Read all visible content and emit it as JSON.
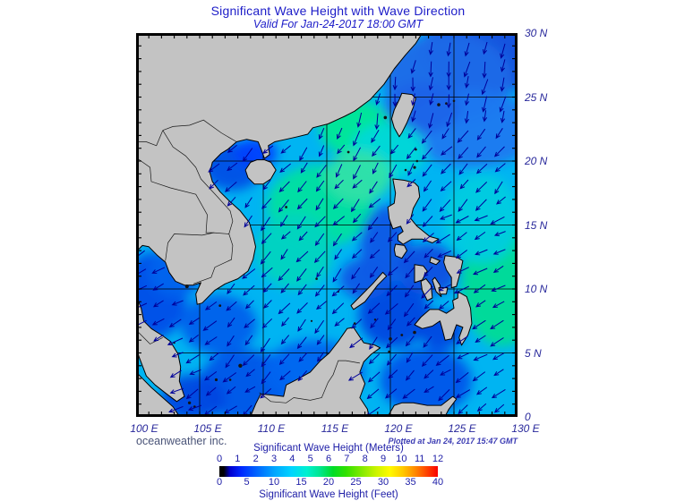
{
  "header": {
    "title": "Significant Wave Height with Wave Direction",
    "subtitle": "Valid For Jan-24-2017 18:00 GMT"
  },
  "map": {
    "lon_labels": [
      "100 E",
      "105 E",
      "110 E",
      "115 E",
      "120 E",
      "125 E",
      "130 E"
    ],
    "lat_labels": [
      "30 N",
      "25 N",
      "20 N",
      "15 N",
      "10 N",
      "5 N",
      "0"
    ],
    "lon_range": [
      100,
      130
    ],
    "lat_range": [
      0,
      30
    ],
    "grid_interval_deg": 5,
    "tick_interval_deg": 1,
    "land_color": "#c3c3c3",
    "coast_color": "#000000",
    "sea_base_color": "#00b4f2",
    "arrow_color": "#000099",
    "arrow_general_direction": "southwest",
    "wave_field": [
      {
        "lon": 127.5,
        "lat": 28.7,
        "rx": 5.0,
        "ry": 3.5,
        "color": "#1450dc"
      },
      {
        "lon": 124.5,
        "lat": 26.5,
        "rx": 5.0,
        "ry": 3.5,
        "color": "#1e6ae8"
      },
      {
        "lon": 126.5,
        "lat": 22.5,
        "rx": 5.0,
        "ry": 3.0,
        "color": "#1e78f0"
      },
      {
        "lon": 122.5,
        "lat": 24.2,
        "rx": 3.0,
        "ry": 2.0,
        "color": "#2064e8"
      },
      {
        "lon": 117.2,
        "lat": 22.6,
        "rx": 2.8,
        "ry": 2.2,
        "color": "#00e896"
      },
      {
        "lon": 119.8,
        "lat": 20.8,
        "rx": 3.0,
        "ry": 2.2,
        "color": "#00d8d8"
      },
      {
        "lon": 114.5,
        "lat": 16.5,
        "rx": 4.2,
        "ry": 3.2,
        "color": "#00e0a0"
      },
      {
        "lon": 117.5,
        "lat": 18.8,
        "rx": 2.6,
        "ry": 2.0,
        "color": "#30e2a8"
      },
      {
        "lon": 112.5,
        "lat": 13.0,
        "rx": 3.0,
        "ry": 3.0,
        "color": "#00d4c0"
      },
      {
        "lon": 128.8,
        "lat": 10.5,
        "rx": 3.2,
        "ry": 5.0,
        "color": "#00dc96"
      },
      {
        "lon": 127.2,
        "lat": 15.5,
        "rx": 3.0,
        "ry": 3.5,
        "color": "#00cce0"
      },
      {
        "lon": 107.6,
        "lat": 19.6,
        "rx": 2.4,
        "ry": 1.9,
        "color": "#0050e6"
      },
      {
        "lon": 109.4,
        "lat": 20.6,
        "rx": 1.7,
        "ry": 1.2,
        "color": "#0041ff"
      },
      {
        "lon": 101.4,
        "lat": 9.5,
        "rx": 2.6,
        "ry": 3.4,
        "color": "#004ee8"
      },
      {
        "lon": 103.2,
        "lat": 11.3,
        "rx": 2.2,
        "ry": 1.9,
        "color": "#0064ee"
      },
      {
        "lon": 106.5,
        "lat": 7.2,
        "rx": 3.0,
        "ry": 2.3,
        "color": "#0060ec"
      },
      {
        "lon": 108.5,
        "lat": 2.5,
        "rx": 3.6,
        "ry": 2.8,
        "color": "#0055e8"
      },
      {
        "lon": 104.5,
        "lat": 1.5,
        "rx": 2.5,
        "ry": 1.8,
        "color": "#0046e0"
      },
      {
        "lon": 120.3,
        "lat": 8.0,
        "rx": 2.8,
        "ry": 2.6,
        "color": "#0046e0"
      },
      {
        "lon": 122.8,
        "lat": 2.8,
        "rx": 3.6,
        "ry": 2.6,
        "color": "#0055ea"
      },
      {
        "lon": 124.0,
        "lat": 6.8,
        "rx": 1.8,
        "ry": 1.5,
        "color": "#0046e0"
      },
      {
        "lon": 119.6,
        "lat": 13.5,
        "rx": 2.0,
        "ry": 3.0,
        "color": "#0a5ae6"
      },
      {
        "lon": 123.0,
        "lat": 11.5,
        "rx": 2.4,
        "ry": 2.0,
        "color": "#0a50e0"
      },
      {
        "lon": 114.0,
        "lat": 3.5,
        "rx": 4.0,
        "ry": 2.5,
        "color": "#0064f0"
      },
      {
        "lon": 118.0,
        "lat": 10.8,
        "rx": 2.0,
        "ry": 1.6,
        "color": "#0a5ae6"
      }
    ]
  },
  "footer": {
    "credit": "oceanweather inc.",
    "plotted": "Plotted at Jan 24, 2017 15:47 GMT"
  },
  "legend": {
    "meters_label": "Significant Wave Height (Meters)",
    "feet_label": "Significant Wave Height (Feet)",
    "meters_ticks": [
      0,
      1,
      2,
      3,
      4,
      5,
      6,
      7,
      8,
      9,
      10,
      11,
      12
    ],
    "meters_max": 12,
    "feet_ticks": [
      0,
      5,
      10,
      15,
      20,
      25,
      30,
      35,
      40
    ],
    "feet_max": 40,
    "gradient": [
      [
        0.0,
        "#000000"
      ],
      [
        0.02,
        "#000000"
      ],
      [
        0.05,
        "#0000d0"
      ],
      [
        0.1,
        "#0028ff"
      ],
      [
        0.17,
        "#0064ff"
      ],
      [
        0.25,
        "#00a4ff"
      ],
      [
        0.33,
        "#00d4ff"
      ],
      [
        0.4,
        "#00f0d0"
      ],
      [
        0.46,
        "#00e690"
      ],
      [
        0.52,
        "#00dc28"
      ],
      [
        0.58,
        "#32e100"
      ],
      [
        0.66,
        "#8ceb00"
      ],
      [
        0.72,
        "#cdf400"
      ],
      [
        0.78,
        "#fffa00"
      ],
      [
        0.84,
        "#ffc800"
      ],
      [
        0.89,
        "#ff9100"
      ],
      [
        0.94,
        "#ff5000"
      ],
      [
        1.0,
        "#fa0000"
      ]
    ]
  }
}
